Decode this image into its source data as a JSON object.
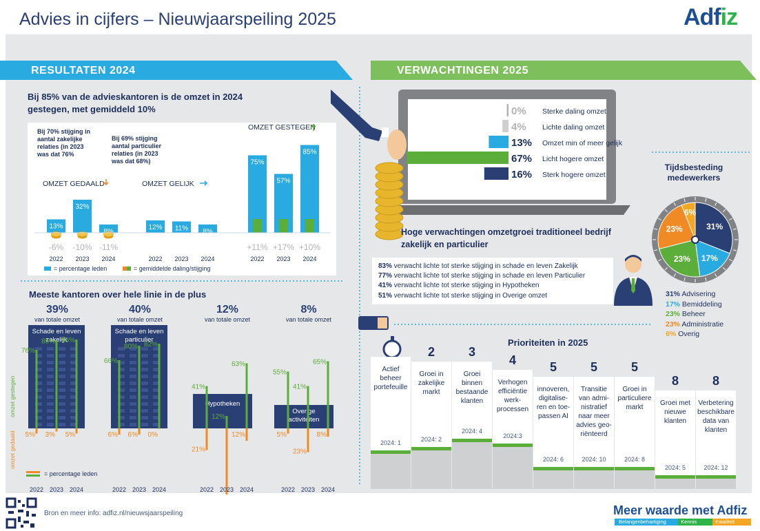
{
  "header": {
    "title": "Advies in cijfers – Nieuwjaarspeiling 2025",
    "logo": "Adfiz"
  },
  "results": {
    "band_title": "RESULTATEN 2024",
    "headline": "Bij 85% van de advieskantoren is de omzet in 2024",
    "headline2": "gestegen, met gemiddeld 10%",
    "note_zakelijk": [
      "Bij 70% stijging in",
      "aantal zakelijke",
      "relaties (in 2023",
      "was dat 76%"
    ],
    "note_particulier": [
      "Bij 69% stijging",
      "aantal particulier",
      "relaties (in 2023",
      "was dat 68%)"
    ],
    "legend_leden": "= percentage leden",
    "legend_gemiddeld": "= gemiddelde daling/stijging"
  },
  "chart_data": [
    {
      "type": "bar",
      "categories": [
        "2022",
        "2023",
        "2024"
      ],
      "groups": [
        {
          "name": "OMZET GEDAALD",
          "percentage_leden": [
            13,
            32,
            8
          ],
          "gemiddelde": [
            "-6%",
            "-10%",
            "-11%"
          ]
        },
        {
          "name": "OMZET GELIJK",
          "percentage_leden": [
            12,
            11,
            8
          ],
          "gemiddelde": [
            "",
            "",
            ""
          ]
        },
        {
          "name": "OMZET GESTEGEN",
          "percentage_leden": [
            75,
            57,
            85
          ],
          "gemiddelde": [
            "+11%",
            "+17%",
            "+10%"
          ]
        }
      ],
      "series": [
        {
          "name": "= percentage leden",
          "color": "#29abe2"
        },
        {
          "name": "= gemiddelde daling/stijging",
          "color": "#5cae3a"
        }
      ]
    },
    {
      "type": "bar",
      "title": "Meeste kantoren over hele linie in de plus",
      "categories": [
        "2022",
        "2023",
        "2024"
      ],
      "groups": [
        {
          "share": "39%",
          "share_label": "van totale omzet",
          "name": "Schade en leven zakelijk",
          "gestegen": [
            76,
            85,
            86
          ],
          "gedaald": [
            5,
            3,
            5
          ]
        },
        {
          "share": "40%",
          "share_label": "van totale omzet",
          "name": "Schade en leven particulier",
          "gestegen": [
            66,
            80,
            82
          ],
          "gedaald": [
            6,
            6,
            0
          ]
        },
        {
          "share": "12%",
          "share_label": "van totale omzet",
          "name": "Hypotheken",
          "gestegen": [
            41,
            12,
            63
          ],
          "gedaald": [
            21,
            75,
            12
          ]
        },
        {
          "share": "8%",
          "share_label": "van totale omzet",
          "name": "Overige activiteiten",
          "gestegen": [
            55,
            41,
            65
          ],
          "gedaald": [
            5,
            23,
            8
          ]
        }
      ],
      "axis_labels": {
        "up": "omzet gestegen",
        "down": "omzet gedaald"
      },
      "legend": "= percentage leden"
    },
    {
      "type": "bar",
      "categories": [
        "Sterke daling omzet",
        "Lichte daling omzet",
        "Omzet min of meer gelijk",
        "Licht hogere omzet",
        "Sterk hogere omzet"
      ],
      "values": [
        0,
        4,
        13,
        67,
        16
      ],
      "labels": [
        "0%",
        "4%",
        "13%",
        "67%",
        "16%"
      ],
      "colors": [
        "#b3b3b3",
        "#cfcfcf",
        "#29abe2",
        "#5cae3a",
        "#2a3f73"
      ]
    },
    {
      "type": "pie",
      "title": "Tijdsbesteding medewerkers",
      "categories": [
        "Advisering",
        "Bemiddeling",
        "Beheer",
        "Administratie",
        "Overig"
      ],
      "values": [
        31,
        17,
        23,
        23,
        6
      ],
      "colors": [
        "#2a3f73",
        "#29abe2",
        "#5cae3a",
        "#f08a24",
        "#f5a623"
      ]
    }
  ],
  "expectations": {
    "band_title": "VERWACHTINGEN 2025",
    "headline": "Hoge verwachtingen omzetgroei traditioneel bedrijf",
    "headline2": "zakelijk en particulier",
    "items": [
      {
        "pct": "83%",
        "text": "verwacht lichte tot sterke stijging in schade en leven Zakelijk"
      },
      {
        "pct": "77%",
        "text": "verwacht lichte tot sterke stijging in schade en leven Particulier"
      },
      {
        "pct": "41%",
        "text": "verwacht lichte tot sterke stijging in Hypotheken"
      },
      {
        "pct": "51%",
        "text": "verwacht lichte tot sterke stijging in Overige omzet"
      }
    ]
  },
  "priorities": {
    "title": "Prioriteiten in 2025",
    "items": [
      {
        "rank": "1",
        "label": [
          "Actief",
          "beheer",
          "portefeuille"
        ],
        "prev": "2024: 1"
      },
      {
        "rank": "2",
        "label": [
          "Groei in",
          "zakelijke",
          "markt"
        ],
        "prev": "2024: 2"
      },
      {
        "rank": "3",
        "label": [
          "Groei",
          "binnen",
          "bestaande",
          "klanten"
        ],
        "prev": "2024: 4"
      },
      {
        "rank": "4",
        "label": [
          "Verhogen",
          "efficiëntie",
          "werk-",
          "processen"
        ],
        "prev": "2024:3"
      },
      {
        "rank": "5",
        "label": [
          "innoveren,",
          "digitalise-",
          "ren en toe-",
          "passen AI"
        ],
        "prev": "2024: 6"
      },
      {
        "rank": "5",
        "label": [
          "Transitie",
          "van admi-",
          "nistratief",
          "naar meer",
          "advies geo-",
          "riënteerd"
        ],
        "prev": "2024: 10"
      },
      {
        "rank": "5",
        "label": [
          "Groei in",
          "particuliere",
          "markt"
        ],
        "prev": "2024: 8"
      },
      {
        "rank": "8",
        "label": [
          "Groei met",
          "nieuwe",
          "klanten"
        ],
        "prev": "2024: 5"
      },
      {
        "rank": "8",
        "label": [
          "Verbetering",
          "beschikbare",
          "data van",
          "klanten"
        ],
        "prev": "2024: 12"
      }
    ]
  },
  "footer": {
    "source": "Bron en meer info: adfiz.nl/nieuwsjaarspeiling",
    "tagline": "Meer waarde met",
    "tagline_brand": "Adfiz",
    "pillars": [
      "Belangenbehartiging",
      "Kennis",
      "Kwaliteit"
    ]
  },
  "colors": {
    "navy": "#2a3f73",
    "blue": "#29abe2",
    "green": "#5cae3a",
    "orange": "#f08a24",
    "gray": "#e6e7e8"
  }
}
